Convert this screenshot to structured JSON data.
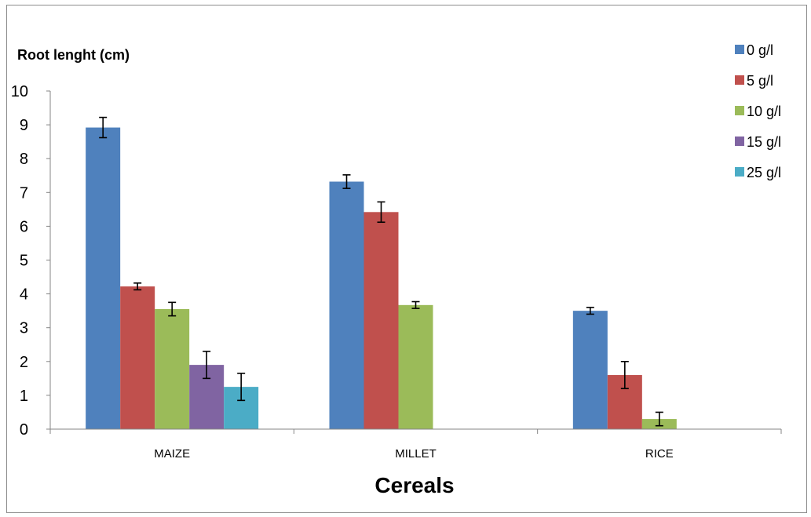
{
  "chart_data": {
    "type": "bar",
    "ylabel": "Root lenght (cm)",
    "xlabel": "Cereals",
    "categories": [
      "MAIZE",
      "MILLET",
      "RICE"
    ],
    "ylim": [
      0,
      10
    ],
    "yticks": [
      "0",
      "1",
      "2",
      "3",
      "4",
      "5",
      "6",
      "7",
      "8",
      "9",
      "10"
    ],
    "grid": false,
    "legend_position": "top-right",
    "error_bars": true,
    "series": [
      {
        "name": "0 g/l",
        "color": "#4f81bd",
        "values": [
          8.92,
          7.32,
          3.5
        ],
        "errors": [
          0.3,
          0.2,
          0.1
        ]
      },
      {
        "name": "5 g/l",
        "color": "#c0504d",
        "values": [
          4.22,
          6.42,
          1.6
        ],
        "errors": [
          0.1,
          0.3,
          0.4
        ]
      },
      {
        "name": "10 g/l",
        "color": "#9bbb59",
        "values": [
          3.55,
          3.67,
          0.3
        ],
        "errors": [
          0.2,
          0.1,
          0.2
        ]
      },
      {
        "name": "15 g/l",
        "color": "#8064a2",
        "values": [
          1.9,
          0,
          0
        ],
        "errors": [
          0.4,
          0,
          0
        ]
      },
      {
        "name": "25 g/l",
        "color": "#4bacc6",
        "values": [
          1.25,
          0,
          0
        ],
        "errors": [
          0.4,
          0,
          0
        ]
      }
    ]
  }
}
